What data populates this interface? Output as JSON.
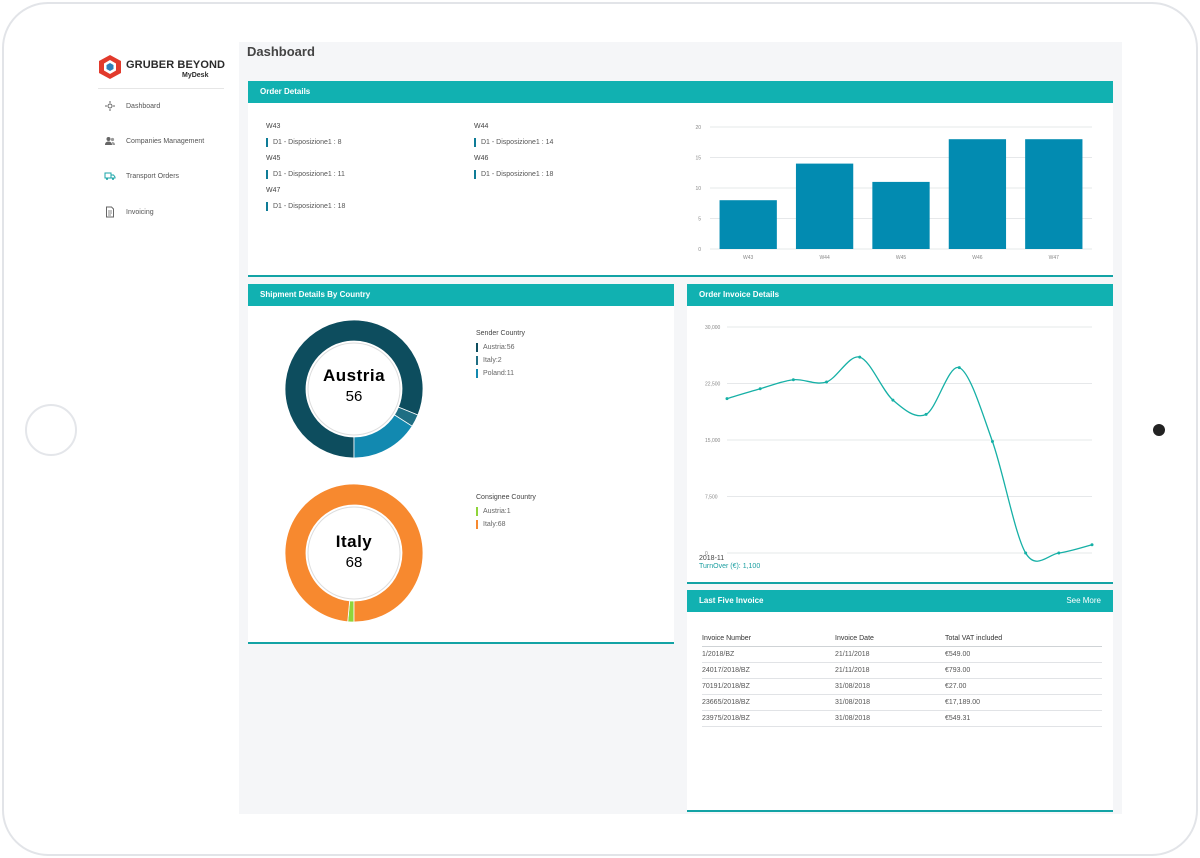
{
  "app": {
    "brand": "GRUBER BEYOND",
    "sub_brand": "MyDesk",
    "page_title": "Dashboard"
  },
  "sidebar": {
    "items": [
      {
        "label": "Dashboard",
        "icon": "dashboard-icon"
      },
      {
        "label": "Companies Management",
        "icon": "users-icon"
      },
      {
        "label": "Transport Orders",
        "icon": "truck-icon"
      },
      {
        "label": "Invoicing",
        "icon": "document-icon"
      }
    ]
  },
  "order_details": {
    "title": "Order Details",
    "weeks": [
      {
        "week": "W43",
        "line": "D1 - Disposizione1 : 8"
      },
      {
        "week": "W44",
        "line": "D1 - Disposizione1 : 14"
      },
      {
        "week": "W45",
        "line": "D1 - Disposizione1 : 11"
      },
      {
        "week": "W46",
        "line": "D1 - Disposizione1 : 18"
      },
      {
        "week": "W47",
        "line": "D1 - Disposizione1 : 18"
      }
    ]
  },
  "shipment": {
    "title": "Shipment Details By Country",
    "sender": {
      "legend_title": "Sender Country",
      "center_country": "Austria",
      "center_value": "56",
      "items": [
        {
          "label": "Austria:56",
          "value": 56,
          "color": "#0d4d5e"
        },
        {
          "label": "Italy:2",
          "value": 2,
          "color": "#1f6e83"
        },
        {
          "label": "Poland:11",
          "value": 11,
          "color": "#1289b0"
        }
      ]
    },
    "consignee": {
      "legend_title": "Consignee Country",
      "center_country": "Italy",
      "center_value": "68",
      "items": [
        {
          "label": "Austria:1",
          "value": 1,
          "color": "#8fd43a"
        },
        {
          "label": "Italy:68",
          "value": 68,
          "color": "#f7892f"
        }
      ]
    }
  },
  "order_invoice": {
    "title": "Order Invoice Details",
    "tooltip_date": "2018-11",
    "tooltip_value": "TurnOver (€): 1,100"
  },
  "last_invoice": {
    "title": "Last Five Invoice",
    "see_more": "See More",
    "columns": [
      "Invoice Number",
      "Invoice Date",
      "Total VAT included"
    ],
    "rows": [
      [
        "1/2018/BZ",
        "21/11/2018",
        "€549.00"
      ],
      [
        "24017/2018/BZ",
        "21/11/2018",
        "€793.00"
      ],
      [
        "70191/2018/BZ",
        "31/08/2018",
        "€27.00"
      ],
      [
        "23665/2018/BZ",
        "31/08/2018",
        "€17,189.00"
      ],
      [
        "23975/2018/BZ",
        "31/08/2018",
        "€549.31"
      ]
    ]
  },
  "chart_data": [
    {
      "type": "bar",
      "categories": [
        "W43",
        "W44",
        "W45",
        "W46",
        "W47"
      ],
      "values": [
        8,
        14,
        11,
        18,
        18
      ],
      "yticks": [
        "0",
        "5",
        "10",
        "15",
        "20"
      ],
      "ylim": [
        0,
        20
      ],
      "color": "#028bb1",
      "grid": true
    },
    {
      "type": "line",
      "y": [
        20500,
        21800,
        23000,
        22700,
        26000,
        20300,
        18400,
        24600,
        14800,
        0,
        0,
        1100
      ],
      "yticks": [
        "0",
        "7,500",
        "15,000",
        "22,500",
        "30,000"
      ],
      "ylim": [
        0,
        30000
      ],
      "color": "#16b0a6",
      "grid": true
    }
  ]
}
